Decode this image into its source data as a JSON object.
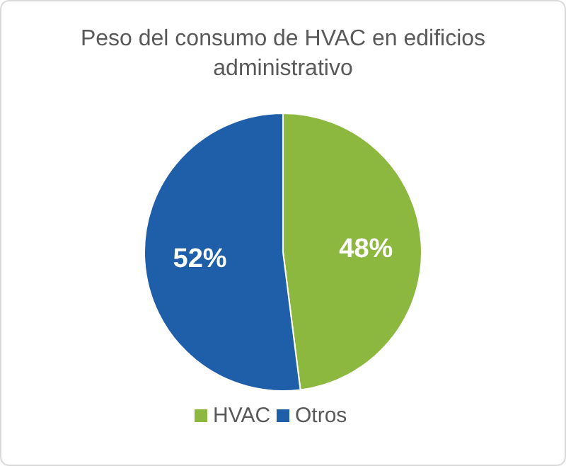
{
  "chart_data": {
    "type": "pie",
    "title": "Peso del consumo de HVAC en edificios administrativo",
    "categories": [
      "HVAC",
      "Otros"
    ],
    "values": [
      48,
      52
    ],
    "colors": [
      "#8cb840",
      "#1f5ea8"
    ],
    "value_labels": [
      "48%",
      "52%"
    ],
    "legend": "bottom"
  }
}
